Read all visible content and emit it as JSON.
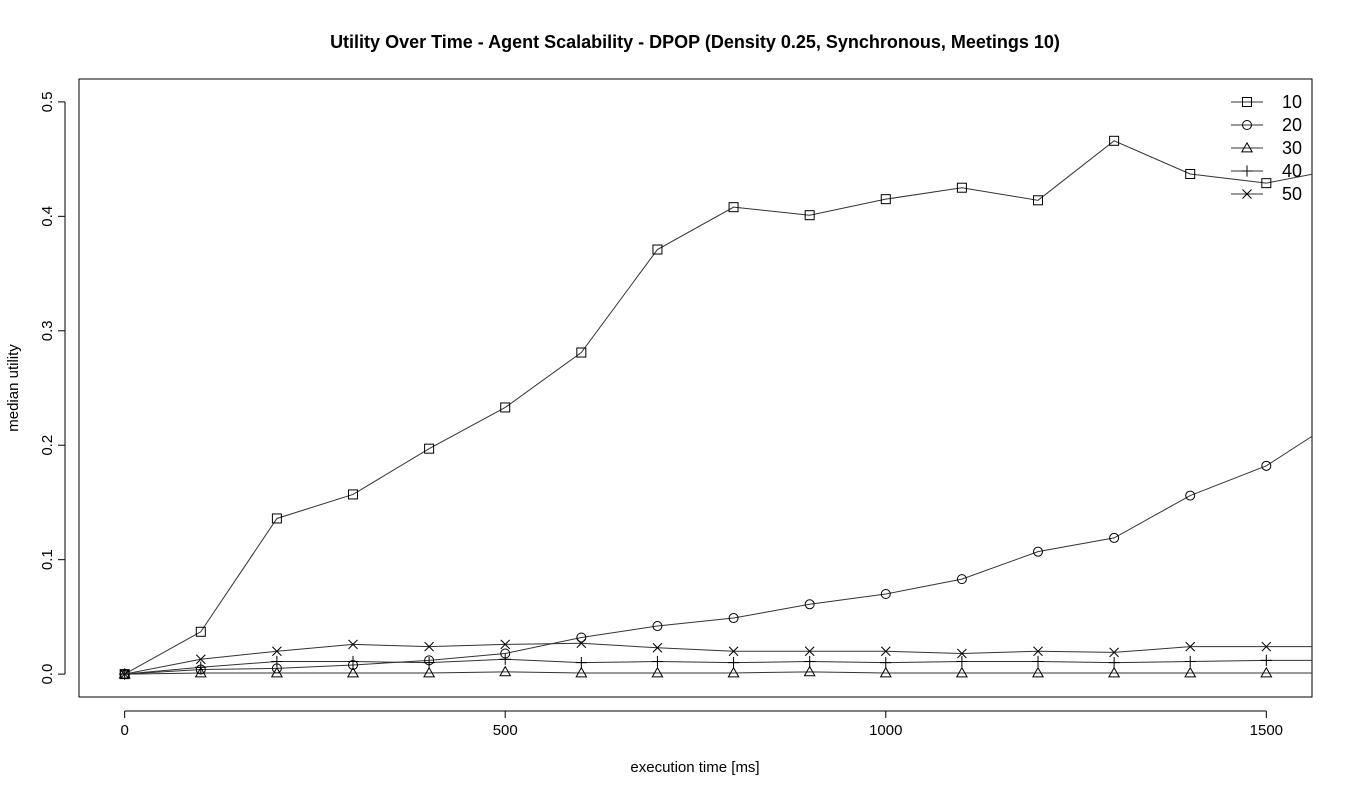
{
  "chart_data": {
    "type": "line",
    "title": "Utility Over Time - Agent Scalability - DPOP (Density 0.25, Synchronous, Meetings 10)",
    "xlabel": "execution time [ms]",
    "ylabel": "median utility",
    "xlim": [
      -60,
      1560
    ],
    "ylim": [
      -0.02,
      0.52
    ],
    "xticks": [
      0,
      500,
      1000,
      1500
    ],
    "yticks": [
      0.0,
      0.1,
      0.2,
      0.3,
      0.4,
      0.5
    ],
    "xtick_labels": [
      "0",
      "500",
      "1000",
      "1500"
    ],
    "ytick_labels": [
      "0.0",
      "0.1",
      "0.2",
      "0.3",
      "0.4",
      "0.5"
    ],
    "grid": false,
    "legend_position": "top-right",
    "x": [
      0,
      100,
      200,
      300,
      400,
      500,
      600,
      700,
      800,
      900,
      1000,
      1100,
      1200,
      1300,
      1400,
      1500,
      1600
    ],
    "series": [
      {
        "name": "10",
        "marker": "square",
        "values": [
          0.0,
          0.037,
          0.136,
          0.157,
          0.197,
          0.233,
          0.281,
          0.371,
          0.408,
          0.401,
          0.415,
          0.425,
          0.414,
          0.466,
          0.437,
          0.429,
          0.442
        ]
      },
      {
        "name": "20",
        "marker": "circle",
        "values": [
          0.0,
          0.004,
          0.005,
          0.008,
          0.012,
          0.018,
          0.032,
          0.042,
          0.049,
          0.061,
          0.07,
          0.083,
          0.107,
          0.119,
          0.156,
          0.182,
          0.225
        ]
      },
      {
        "name": "30",
        "marker": "triangle",
        "values": [
          0.0,
          0.001,
          0.001,
          0.001,
          0.001,
          0.002,
          0.001,
          0.001,
          0.001,
          0.002,
          0.001,
          0.001,
          0.001,
          0.001,
          0.001,
          0.001,
          0.001
        ]
      },
      {
        "name": "40",
        "marker": "plus",
        "values": [
          0.0,
          0.006,
          0.011,
          0.011,
          0.01,
          0.013,
          0.01,
          0.011,
          0.01,
          0.011,
          0.01,
          0.011,
          0.011,
          0.01,
          0.011,
          0.012,
          0.012
        ]
      },
      {
        "name": "50",
        "marker": "cross",
        "values": [
          0.0,
          0.013,
          0.02,
          0.026,
          0.024,
          0.026,
          0.027,
          0.023,
          0.02,
          0.02,
          0.02,
          0.018,
          0.02,
          0.019,
          0.024,
          0.024,
          0.024
        ]
      }
    ]
  }
}
